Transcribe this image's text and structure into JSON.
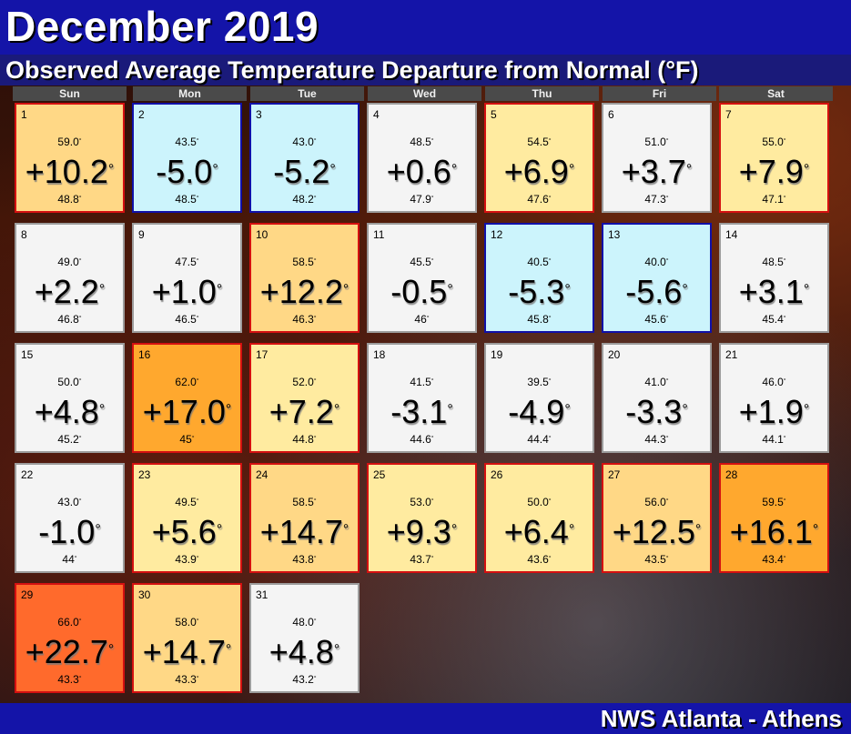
{
  "title": "December 2019",
  "subtitle": "Observed Average Temperature Departure from Normal (°F)",
  "footer": "NWS Atlanta - Athens",
  "weekdays": [
    "Sun",
    "Mon",
    "Tue",
    "Wed",
    "Thu",
    "Fri",
    "Sat"
  ],
  "start_weekday": 0,
  "degree_symbol": "°",
  "colors": {
    "near_normal": "#f4f4f4",
    "cool": "#ccf4fc",
    "warm_light": "#ffeba0",
    "warm": "#ffd886",
    "hot": "#ffa82e",
    "very_hot": "#ff6a2c",
    "warm_border": "#d41010",
    "cool_border": "#1010a8",
    "neutral_border": "#9c9c9c"
  },
  "days": [
    {
      "day": "1",
      "observed": "59.0",
      "departure": "+10.2",
      "normal": "48.8",
      "category": "warm"
    },
    {
      "day": "2",
      "observed": "43.5",
      "departure": "-5.0",
      "normal": "48.5",
      "category": "cool"
    },
    {
      "day": "3",
      "observed": "43.0",
      "departure": "-5.2",
      "normal": "48.2",
      "category": "cool"
    },
    {
      "day": "4",
      "observed": "48.5",
      "departure": "+0.6",
      "normal": "47.9",
      "category": "near_normal"
    },
    {
      "day": "5",
      "observed": "54.5",
      "departure": "+6.9",
      "normal": "47.6",
      "category": "warm_light"
    },
    {
      "day": "6",
      "observed": "51.0",
      "departure": "+3.7",
      "normal": "47.3",
      "category": "near_normal"
    },
    {
      "day": "7",
      "observed": "55.0",
      "departure": "+7.9",
      "normal": "47.1",
      "category": "warm_light"
    },
    {
      "day": "8",
      "observed": "49.0",
      "departure": "+2.2",
      "normal": "46.8",
      "category": "near_normal"
    },
    {
      "day": "9",
      "observed": "47.5",
      "departure": "+1.0",
      "normal": "46.5",
      "category": "near_normal"
    },
    {
      "day": "10",
      "observed": "58.5",
      "departure": "+12.2",
      "normal": "46.3",
      "category": "warm"
    },
    {
      "day": "11",
      "observed": "45.5",
      "departure": "-0.5",
      "normal": "46",
      "category": "near_normal"
    },
    {
      "day": "12",
      "observed": "40.5",
      "departure": "-5.3",
      "normal": "45.8",
      "category": "cool"
    },
    {
      "day": "13",
      "observed": "40.0",
      "departure": "-5.6",
      "normal": "45.6",
      "category": "cool"
    },
    {
      "day": "14",
      "observed": "48.5",
      "departure": "+3.1",
      "normal": "45.4",
      "category": "near_normal"
    },
    {
      "day": "15",
      "observed": "50.0",
      "departure": "+4.8",
      "normal": "45.2",
      "category": "near_normal"
    },
    {
      "day": "16",
      "observed": "62.0",
      "departure": "+17.0",
      "normal": "45",
      "category": "hot"
    },
    {
      "day": "17",
      "observed": "52.0",
      "departure": "+7.2",
      "normal": "44.8",
      "category": "warm_light"
    },
    {
      "day": "18",
      "observed": "41.5",
      "departure": "-3.1",
      "normal": "44.6",
      "category": "near_normal"
    },
    {
      "day": "19",
      "observed": "39.5",
      "departure": "-4.9",
      "normal": "44.4",
      "category": "near_normal"
    },
    {
      "day": "20",
      "observed": "41.0",
      "departure": "-3.3",
      "normal": "44.3",
      "category": "near_normal"
    },
    {
      "day": "21",
      "observed": "46.0",
      "departure": "+1.9",
      "normal": "44.1",
      "category": "near_normal"
    },
    {
      "day": "22",
      "observed": "43.0",
      "departure": "-1.0",
      "normal": "44",
      "category": "near_normal"
    },
    {
      "day": "23",
      "observed": "49.5",
      "departure": "+5.6",
      "normal": "43.9",
      "category": "warm_light"
    },
    {
      "day": "24",
      "observed": "58.5",
      "departure": "+14.7",
      "normal": "43.8",
      "category": "warm"
    },
    {
      "day": "25",
      "observed": "53.0",
      "departure": "+9.3",
      "normal": "43.7",
      "category": "warm_light"
    },
    {
      "day": "26",
      "observed": "50.0",
      "departure": "+6.4",
      "normal": "43.6",
      "category": "warm_light"
    },
    {
      "day": "27",
      "observed": "56.0",
      "departure": "+12.5",
      "normal": "43.5",
      "category": "warm"
    },
    {
      "day": "28",
      "observed": "59.5",
      "departure": "+16.1",
      "normal": "43.4",
      "category": "hot"
    },
    {
      "day": "29",
      "observed": "66.0",
      "departure": "+22.7",
      "normal": "43.3",
      "category": "very_hot"
    },
    {
      "day": "30",
      "observed": "58.0",
      "departure": "+14.7",
      "normal": "43.3",
      "category": "warm"
    },
    {
      "day": "31",
      "observed": "48.0",
      "departure": "+4.8",
      "normal": "43.2",
      "category": "near_normal"
    }
  ]
}
